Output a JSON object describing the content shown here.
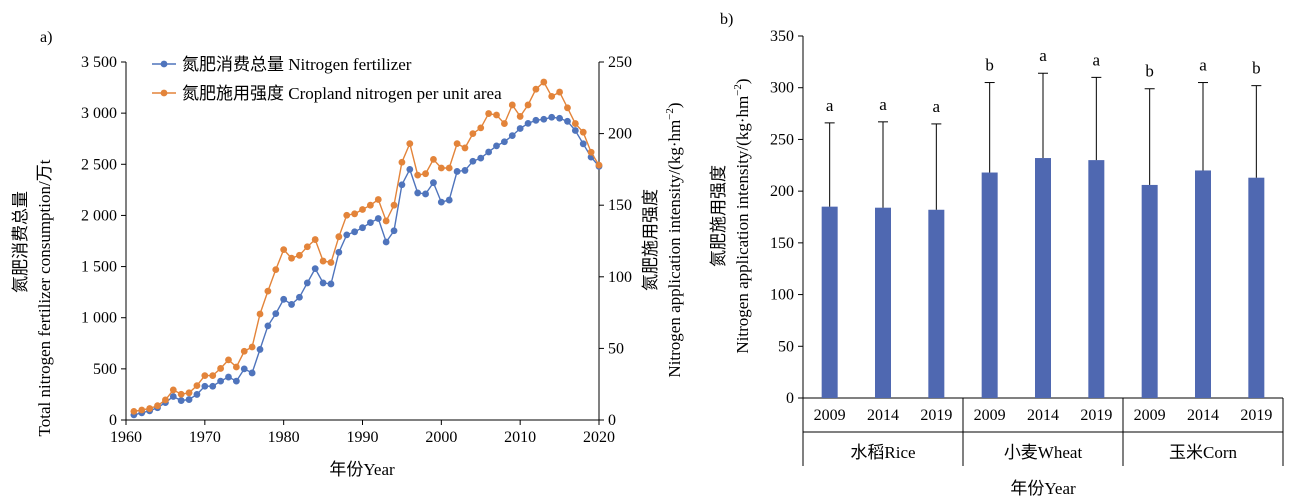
{
  "chart_data": [
    {
      "panel_label": "a)",
      "type": "line",
      "xlabel": "年份Year",
      "ylabel_left": [
        "氮肥消费总量",
        "Total nitrogen fertilizer consumption/万t"
      ],
      "ylabel_right": [
        "氮肥施用强度",
        "Nitrogen application intensity/(kg·hm",
        "−2",
        ")"
      ],
      "xlim": [
        1960,
        2020
      ],
      "ylim_left": [
        0,
        3500
      ],
      "ylim_right": [
        0,
        250
      ],
      "x_ticks": [
        "1960",
        "1970",
        "1980",
        "1990",
        "2000",
        "2010",
        "2020"
      ],
      "y_left_ticks": [
        "0",
        "500",
        "1 000",
        "1 500",
        "2 000",
        "2 500",
        "3 000",
        "3 500"
      ],
      "y_right_ticks": [
        "0",
        "50",
        "100",
        "150",
        "200",
        "250"
      ],
      "legend_position": "top-left",
      "series": [
        {
          "name": "氮肥消费总量 Nitrogen fertilizer",
          "color": "#4f74bc",
          "axis": "left",
          "x": [
            1961,
            1962,
            1963,
            1964,
            1965,
            1966,
            1967,
            1968,
            1969,
            1970,
            1971,
            1972,
            1973,
            1974,
            1975,
            1976,
            1977,
            1978,
            1979,
            1980,
            1981,
            1982,
            1983,
            1984,
            1985,
            1986,
            1987,
            1988,
            1989,
            1990,
            1991,
            1992,
            1993,
            1994,
            1995,
            1996,
            1997,
            1998,
            1999,
            2000,
            2001,
            2002,
            2003,
            2004,
            2005,
            2006,
            2007,
            2008,
            2009,
            2010,
            2011,
            2012,
            2013,
            2014,
            2015,
            2016,
            2017,
            2018,
            2019,
            2020
          ],
          "y": [
            50,
            70,
            90,
            120,
            170,
            230,
            190,
            200,
            250,
            330,
            330,
            380,
            420,
            380,
            500,
            460,
            690,
            920,
            1040,
            1180,
            1130,
            1200,
            1340,
            1480,
            1340,
            1330,
            1640,
            1810,
            1840,
            1880,
            1930,
            1970,
            1740,
            1850,
            2300,
            2450,
            2220,
            2210,
            2320,
            2130,
            2150,
            2430,
            2440,
            2530,
            2560,
            2620,
            2680,
            2720,
            2780,
            2850,
            2900,
            2930,
            2940,
            2960,
            2950,
            2920,
            2830,
            2700,
            2570,
            2480
          ]
        },
        {
          "name": "氮肥施用强度 Cropland nitrogen per unit area",
          "color": "#e3843a",
          "axis": "right",
          "x": [
            1961,
            1962,
            1963,
            1964,
            1965,
            1966,
            1967,
            1968,
            1969,
            1970,
            1971,
            1972,
            1973,
            1974,
            1975,
            1976,
            1977,
            1978,
            1979,
            1980,
            1981,
            1982,
            1983,
            1984,
            1985,
            1986,
            1987,
            1988,
            1989,
            1990,
            1991,
            1992,
            1993,
            1994,
            1995,
            1996,
            1997,
            1998,
            1999,
            2000,
            2001,
            2002,
            2003,
            2004,
            2005,
            2006,
            2007,
            2008,
            2009,
            2010,
            2011,
            2012,
            2013,
            2014,
            2015,
            2016,
            2017,
            2018,
            2019,
            2020
          ],
          "y": [
            6,
            7,
            8,
            10,
            14,
            21,
            18,
            19,
            24,
            31,
            31,
            36,
            42,
            37,
            48,
            51,
            74,
            90,
            105,
            119,
            113,
            115,
            121,
            126,
            111,
            110,
            128,
            143,
            144,
            147,
            150,
            154,
            139,
            150,
            180,
            193,
            171,
            172,
            182,
            176,
            176,
            193,
            190,
            200,
            204,
            214,
            213,
            207,
            220,
            212,
            220,
            231,
            236,
            226,
            229,
            218,
            207,
            201,
            187,
            178
          ]
        }
      ]
    },
    {
      "panel_label": "b)",
      "type": "bar",
      "ylabel": [
        "氮肥施用强度",
        "Nitrogen application intensity/(kg·hm",
        "−2",
        ")"
      ],
      "xlabel": "年份Year",
      "ylim": [
        0,
        350
      ],
      "y_ticks": [
        "0",
        "50",
        "100",
        "150",
        "200",
        "250",
        "300",
        "350"
      ],
      "bar_color": "#4f68b1",
      "groups": [
        {
          "name": "水稻Rice",
          "categories": [
            "2009",
            "2014",
            "2019"
          ],
          "values": [
            185,
            184,
            182
          ],
          "error_upper": [
            266,
            267,
            265
          ],
          "letters": [
            "a",
            "a",
            "a"
          ]
        },
        {
          "name": "小麦Wheat",
          "categories": [
            "2009",
            "2014",
            "2019"
          ],
          "values": [
            218,
            232,
            230
          ],
          "error_upper": [
            305,
            314,
            310
          ],
          "letters": [
            "b",
            "a",
            "a"
          ]
        },
        {
          "name": "玉米Corn",
          "categories": [
            "2009",
            "2014",
            "2019"
          ],
          "values": [
            206,
            220,
            213
          ],
          "error_upper": [
            299,
            305,
            302
          ],
          "letters": [
            "b",
            "a",
            "b"
          ]
        }
      ]
    }
  ]
}
